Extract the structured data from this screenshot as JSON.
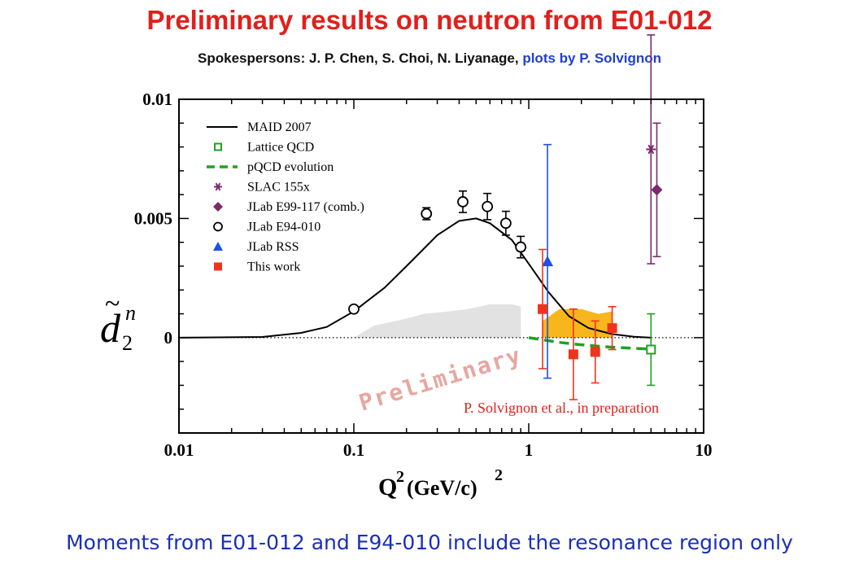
{
  "header": {
    "title": "Preliminary results on neutron from E01-012",
    "subtitle_black": "Spokespersons: J. P. Chen, S. Choi, N. Liyanage,",
    "subtitle_blue": "plots by P. Solvignon"
  },
  "footer": {
    "text": "Moments from E01-012 and E94-010 include the resonance region only"
  },
  "chart_data": {
    "type": "scatter",
    "title": "Preliminary results on neutron from E01-012",
    "xlabel": "Q²(GeV/c)²",
    "xlabel_main": "Q",
    "xlabel_sup": "2",
    "xlabel_unit": "(GeV/c)",
    "xlabel_unit_sup": "2",
    "ylabel": "d̃₂ⁿ",
    "ylabel_main": "d",
    "ylabel_tilde": "~",
    "ylabel_sup": "n",
    "ylabel_sub": "2",
    "xscale": "log",
    "xlim": [
      0.01,
      10
    ],
    "ylim": [
      -0.004,
      0.01
    ],
    "xticks": [
      "0.01",
      "0.1",
      "1",
      "10"
    ],
    "yticks": [
      "0",
      "0.005",
      "0.01"
    ],
    "legend_position": "upper-left",
    "legend": [
      "MAID 2007",
      "Lattice QCD",
      "pQCD evolution",
      "SLAC 155x",
      "JLab E99-117 (comb.)",
      "JLab E94-010",
      "JLab RSS",
      "This work"
    ],
    "watermark": "Preliminary",
    "annotation": "P. Solvignon et al., in preparation",
    "colors": {
      "maid": "#000000",
      "lattice": "#21a121",
      "pqcd": "#21a121",
      "slac": "#7b2a6b",
      "e99117": "#7b2a6b",
      "e94010": "#000000",
      "rss": "#1f4fe8",
      "thiswork": "#f0341c",
      "band_orange": "#f7b61c",
      "band_gray": "#e2e2e2"
    },
    "series": [
      {
        "name": "MAID 2007",
        "kind": "line",
        "points": [
          [
            0.01,
            0.0
          ],
          [
            0.03,
            3e-05
          ],
          [
            0.05,
            0.0002
          ],
          [
            0.07,
            0.00045
          ],
          [
            0.1,
            0.0011
          ],
          [
            0.15,
            0.0021
          ],
          [
            0.2,
            0.003
          ],
          [
            0.3,
            0.0043
          ],
          [
            0.4,
            0.0049
          ],
          [
            0.5,
            0.005
          ],
          [
            0.6,
            0.0048
          ],
          [
            0.8,
            0.0041
          ],
          [
            1.0,
            0.0031
          ],
          [
            1.3,
            0.0019
          ],
          [
            1.7,
            0.0009
          ],
          [
            2.2,
            0.0004
          ],
          [
            3.0,
            0.00015
          ],
          [
            4.0,
            4e-05
          ],
          [
            5.0,
            0.0
          ]
        ]
      },
      {
        "name": "Lattice QCD",
        "kind": "points",
        "points": [
          {
            "x": 5.0,
            "y": -0.0005,
            "err": 0.0015
          }
        ]
      },
      {
        "name": "pQCD evolution",
        "kind": "line",
        "points": [
          [
            1.0,
            0.0
          ],
          [
            1.5,
            -0.0002
          ],
          [
            2.0,
            -0.0003
          ],
          [
            2.5,
            -0.00036
          ],
          [
            3.0,
            -0.0004
          ],
          [
            4.0,
            -0.00045
          ],
          [
            5.0,
            -0.00048
          ]
        ]
      },
      {
        "name": "SLAC 155x",
        "kind": "points",
        "points": [
          {
            "x": 5.0,
            "y": 0.0079,
            "err": 0.0048
          }
        ]
      },
      {
        "name": "JLab E99-117 (comb.)",
        "kind": "points",
        "points": [
          {
            "x": 5.4,
            "y": 0.0062,
            "err": 0.0028
          }
        ]
      },
      {
        "name": "JLab E94-010",
        "kind": "points",
        "points": [
          {
            "x": 0.1,
            "y": 0.0012,
            "err": 0.0
          },
          {
            "x": 0.26,
            "y": 0.0052,
            "err": 0.00025
          },
          {
            "x": 0.42,
            "y": 0.0057,
            "err": 0.00045
          },
          {
            "x": 0.58,
            "y": 0.0055,
            "err": 0.00055
          },
          {
            "x": 0.74,
            "y": 0.0048,
            "err": 0.0005
          },
          {
            "x": 0.9,
            "y": 0.0038,
            "err": 0.00045
          }
        ]
      },
      {
        "name": "JLab RSS",
        "kind": "points",
        "points": [
          {
            "x": 1.28,
            "y": 0.0032,
            "err": 0.0049
          }
        ]
      },
      {
        "name": "This work",
        "kind": "points",
        "points": [
          {
            "x": 1.2,
            "y": 0.0012,
            "err": 0.0025
          },
          {
            "x": 1.8,
            "y": -0.0007,
            "err": 0.0019
          },
          {
            "x": 2.4,
            "y": -0.0006,
            "err": 0.0013
          },
          {
            "x": 3.0,
            "y": 0.0004,
            "err": 0.0009
          }
        ]
      }
    ],
    "bands": [
      {
        "name": "gray band",
        "upper": [
          [
            0.1,
            0.0
          ],
          [
            0.13,
            0.0005
          ],
          [
            0.2,
            0.0008
          ],
          [
            0.25,
            0.001
          ],
          [
            0.35,
            0.0011
          ],
          [
            0.45,
            0.0012
          ],
          [
            0.6,
            0.0014
          ],
          [
            0.8,
            0.0014
          ],
          [
            0.9,
            0.0013
          ],
          [
            0.9,
            0.0
          ]
        ],
        "lower": [
          [
            0.1,
            0.0
          ],
          [
            0.9,
            0.0
          ]
        ]
      },
      {
        "name": "orange band",
        "upper": [
          [
            1.2,
            0.0
          ],
          [
            1.2,
            0.0007
          ],
          [
            1.5,
            0.0012
          ],
          [
            2.0,
            0.0012
          ],
          [
            2.5,
            0.001
          ],
          [
            3.0,
            0.0011
          ],
          [
            3.0,
            0.0
          ]
        ],
        "lower": [
          [
            1.2,
            0.0
          ],
          [
            3.0,
            0.0
          ]
        ]
      }
    ]
  }
}
